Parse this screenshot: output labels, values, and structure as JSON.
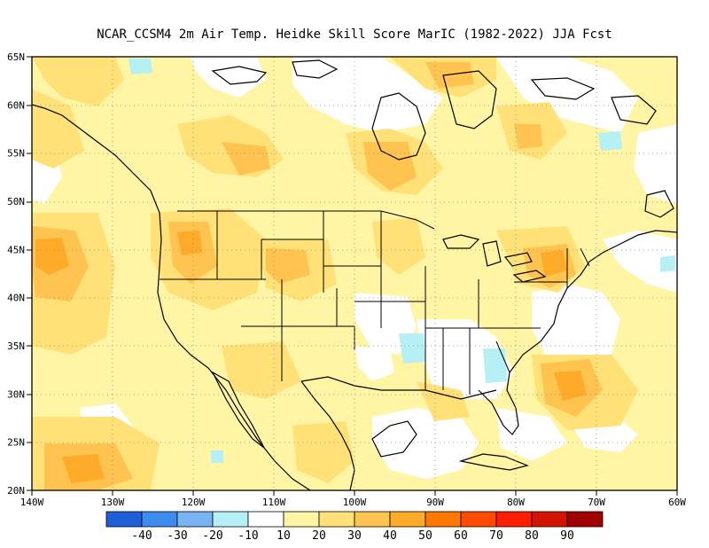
{
  "title": "NCAR_CCSM4  2m Air Temp. Heidke Skill Score MarIC (1982-2022) JJA Fcst",
  "lat_labels": [
    "65N",
    "60N",
    "55N",
    "50N",
    "45N",
    "40N",
    "35N",
    "30N",
    "25N",
    "20N"
  ],
  "lon_labels": [
    "140W",
    "130W",
    "120W",
    "110W",
    "100W",
    "90W",
    "80W",
    "70W",
    "60W"
  ],
  "colorbar": {
    "colors": [
      "#1e5fd8",
      "#3c8cf0",
      "#78b4f5",
      "#b4f0f5",
      "#ffffff",
      "#fff5a5",
      "#ffe178",
      "#ffc350",
      "#ffaa28",
      "#ff7800",
      "#ff4b00",
      "#ff1e00",
      "#d21400",
      "#a00000"
    ],
    "labels": [
      "-40",
      "-30",
      "-20",
      "-10",
      "10",
      "20",
      "30",
      "40",
      "50",
      "60",
      "70",
      "80",
      "90"
    ]
  },
  "palette": {
    "light": "#fff5a5",
    "mid": "#ffe178",
    "orange": "#ffc350",
    "dark": "#ffaa28",
    "cyan": "#b4f0f5"
  }
}
